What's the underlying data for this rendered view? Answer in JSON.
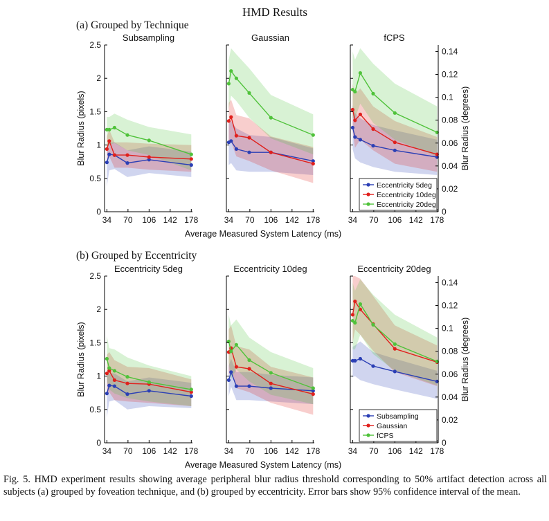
{
  "figure": {
    "title": "HMD Results",
    "caption": "Fig. 5.  HMD experiment results showing average peripheral blur radius threshold corresponding to 50% artifact detection across all subjects (a) grouped by foveation technique, and (b) grouped by eccentricity. Error bars show 95% confidence interval of the mean."
  },
  "rows": [
    {
      "heading": "(a) Grouped by Technique",
      "xlabel": "Average Measured System Latency (ms)",
      "ylabel_left": "Blur Radius (pixels)",
      "ylabel_right": "Blur Radius (degrees)",
      "legend_position": "bottom-right of third panel",
      "legend": [
        {
          "label": "Eccentricity 5deg",
          "color": "#2b3fb5"
        },
        {
          "label": "Eccentricity 10deg",
          "color": "#e0201c"
        },
        {
          "label": "Eccentricity 20deg",
          "color": "#4fc23a"
        }
      ]
    },
    {
      "heading": "(b) Grouped by Eccentricity",
      "xlabel": "Average Measured System Latency (ms)",
      "ylabel_left": "Blur Radius (pixels)",
      "ylabel_right": "Blur Radius (degrees)",
      "legend_position": "bottom-right of third panel",
      "legend": [
        {
          "label": "Subsampling",
          "color": "#2b3fb5"
        },
        {
          "label": "Gaussian",
          "color": "#e0201c"
        },
        {
          "label": "fCPS",
          "color": "#4fc23a"
        }
      ]
    }
  ],
  "axes": {
    "x_ticks": [
      34,
      70,
      106,
      142,
      178
    ],
    "x_range": [
      30,
      180
    ],
    "y_left_ticks": [
      "0",
      "0.5",
      "1",
      "1.5",
      "2",
      "2.5"
    ],
    "y_left_range": [
      0,
      2.5
    ],
    "y_right_ticks": [
      "0",
      "0.02",
      "0.04",
      "0.06",
      "0.08",
      "0.1",
      "0.12",
      "0.14"
    ],
    "y_right_range": [
      0,
      0.1457
    ]
  },
  "chart_data": [
    {
      "type": "line",
      "title": "Subsampling",
      "row": 0,
      "x": [
        34,
        38,
        47,
        69,
        106,
        178
      ],
      "series": [
        {
          "name": "Eccentricity 5deg",
          "color": "#2b3fb5",
          "values": [
            0.74,
            0.86,
            0.85,
            0.73,
            0.78,
            0.7
          ],
          "lower": [
            0.38,
            0.62,
            0.64,
            0.52,
            0.58,
            0.52
          ],
          "upper": [
            1.0,
            1.04,
            1.04,
            0.92,
            0.98,
            0.9
          ]
        },
        {
          "name": "Eccentricity 10deg",
          "color": "#e0201c",
          "values": [
            0.94,
            1.06,
            0.85,
            0.85,
            0.82,
            0.79
          ],
          "lower": [
            0.75,
            0.83,
            0.66,
            0.66,
            0.63,
            0.6
          ],
          "upper": [
            1.13,
            1.23,
            1.04,
            1.04,
            1.02,
            1.0
          ]
        },
        {
          "name": "Eccentricity 20deg",
          "color": "#4fc23a",
          "values": [
            1.23,
            1.23,
            1.26,
            1.15,
            1.07,
            0.86
          ],
          "lower": [
            0.96,
            1.0,
            1.03,
            0.92,
            0.85,
            0.62
          ],
          "upper": [
            1.42,
            1.42,
            1.47,
            1.38,
            1.27,
            1.16
          ]
        }
      ]
    },
    {
      "type": "line",
      "title": "Gaussian",
      "row": 0,
      "x": [
        34,
        38,
        47,
        69,
        106,
        178
      ],
      "series": [
        {
          "name": "Eccentricity 5deg",
          "color": "#2b3fb5",
          "values": [
            1.04,
            1.06,
            0.94,
            0.89,
            0.89,
            0.76
          ],
          "lower": [
            0.7,
            0.73,
            0.62,
            0.6,
            0.6,
            0.55
          ],
          "upper": [
            1.32,
            1.36,
            1.25,
            1.15,
            1.12,
            0.95
          ]
        },
        {
          "name": "Eccentricity 10deg",
          "color": "#e0201c",
          "values": [
            1.36,
            1.42,
            1.14,
            1.11,
            0.89,
            0.72
          ],
          "lower": [
            1.02,
            1.05,
            0.83,
            0.76,
            0.62,
            0.43
          ],
          "upper": [
            1.63,
            1.68,
            1.45,
            1.4,
            1.13,
            0.97
          ]
        },
        {
          "name": "Eccentricity 20deg",
          "color": "#4fc23a",
          "values": [
            1.92,
            2.11,
            2.0,
            1.78,
            1.41,
            1.15
          ],
          "lower": [
            1.53,
            1.74,
            1.66,
            1.41,
            1.1,
            0.86
          ],
          "upper": [
            2.28,
            2.45,
            2.36,
            2.15,
            1.75,
            1.46
          ]
        }
      ]
    },
    {
      "type": "line",
      "title": "fCPS",
      "row": 0,
      "x": [
        34,
        38,
        47,
        69,
        106,
        178
      ],
      "series": [
        {
          "name": "Eccentricity 5deg",
          "color": "#2b3fb5",
          "values": [
            1.26,
            1.12,
            1.08,
            0.99,
            0.92,
            0.82
          ],
          "lower": [
            0.94,
            0.8,
            0.74,
            0.67,
            0.6,
            0.55
          ],
          "upper": [
            1.6,
            1.48,
            1.4,
            1.3,
            1.22,
            1.08
          ]
        },
        {
          "name": "Eccentricity 10deg",
          "color": "#e0201c",
          "values": [
            1.53,
            1.37,
            1.46,
            1.24,
            1.04,
            0.86
          ],
          "lower": [
            1.2,
            0.96,
            1.08,
            0.92,
            0.72,
            0.6
          ],
          "upper": [
            1.92,
            1.76,
            1.85,
            1.58,
            1.36,
            1.12
          ]
        },
        {
          "name": "Eccentricity 20deg",
          "color": "#4fc23a",
          "values": [
            1.83,
            1.8,
            2.08,
            1.77,
            1.48,
            1.19
          ],
          "lower": [
            1.4,
            1.4,
            1.62,
            1.33,
            1.08,
            0.83
          ],
          "upper": [
            2.4,
            2.28,
            2.45,
            2.22,
            1.92,
            1.58
          ]
        }
      ]
    },
    {
      "type": "line",
      "title": "Eccentricity 5deg",
      "row": 1,
      "x": [
        34,
        38,
        47,
        69,
        106,
        178
      ],
      "series": [
        {
          "name": "Subsampling",
          "color": "#2b3fb5",
          "values": [
            0.74,
            0.86,
            0.85,
            0.73,
            0.78,
            0.7
          ],
          "lower": [
            0.38,
            0.62,
            0.64,
            0.5,
            0.55,
            0.52
          ],
          "upper": [
            1.0,
            1.04,
            1.04,
            0.92,
            0.98,
            0.9
          ]
        },
        {
          "name": "Gaussian",
          "color": "#e0201c",
          "values": [
            1.04,
            1.08,
            0.94,
            0.89,
            0.88,
            0.76
          ],
          "lower": [
            0.72,
            0.76,
            0.64,
            0.62,
            0.6,
            0.55
          ],
          "upper": [
            1.32,
            1.36,
            1.24,
            1.14,
            1.12,
            0.95
          ]
        },
        {
          "name": "fCPS",
          "color": "#4fc23a",
          "values": [
            1.26,
            1.12,
            1.08,
            0.99,
            0.91,
            0.8
          ],
          "lower": [
            0.94,
            0.8,
            0.74,
            0.67,
            0.62,
            0.55
          ],
          "upper": [
            1.6,
            1.42,
            1.4,
            1.28,
            1.16,
            1.0
          ]
        }
      ]
    },
    {
      "type": "line",
      "title": "Eccentricity 10deg",
      "row": 1,
      "x": [
        34,
        38,
        47,
        69,
        106,
        178
      ],
      "series": [
        {
          "name": "Subsampling",
          "color": "#2b3fb5",
          "values": [
            0.94,
            1.06,
            0.85,
            0.85,
            0.82,
            0.78
          ],
          "lower": [
            0.7,
            0.84,
            0.64,
            0.64,
            0.62,
            0.58
          ],
          "upper": [
            1.16,
            1.26,
            1.06,
            1.06,
            1.02,
            0.98
          ]
        },
        {
          "name": "Gaussian",
          "color": "#e0201c",
          "values": [
            1.36,
            1.42,
            1.14,
            1.11,
            0.89,
            0.73
          ],
          "lower": [
            1.02,
            1.06,
            0.82,
            0.76,
            0.6,
            0.42
          ],
          "upper": [
            1.7,
            1.76,
            1.45,
            1.4,
            1.14,
            0.98
          ]
        },
        {
          "name": "fCPS",
          "color": "#4fc23a",
          "values": [
            1.52,
            1.37,
            1.47,
            1.24,
            1.05,
            0.82
          ],
          "lower": [
            1.2,
            0.96,
            1.1,
            0.92,
            0.72,
            0.58
          ],
          "upper": [
            1.92,
            1.76,
            1.85,
            1.58,
            1.36,
            1.12
          ]
        }
      ]
    },
    {
      "type": "line",
      "title": "Eccentricity 20deg",
      "row": 1,
      "x": [
        34,
        38,
        47,
        69,
        106,
        178
      ],
      "series": [
        {
          "name": "Subsampling",
          "color": "#2b3fb5",
          "values": [
            1.23,
            1.23,
            1.26,
            1.15,
            1.07,
            0.92
          ],
          "lower": [
            0.98,
            1.0,
            0.94,
            0.88,
            0.8,
            0.66
          ],
          "upper": [
            1.44,
            1.46,
            1.52,
            1.36,
            1.26,
            1.08
          ]
        },
        {
          "name": "Gaussian",
          "color": "#e0201c",
          "values": [
            1.92,
            2.12,
            2.0,
            1.78,
            1.41,
            1.21
          ],
          "lower": [
            1.5,
            1.7,
            1.62,
            1.38,
            1.06,
            0.85
          ],
          "upper": [
            2.5,
            2.5,
            2.46,
            2.2,
            1.76,
            1.46
          ]
        },
        {
          "name": "fCPS",
          "color": "#4fc23a",
          "values": [
            1.83,
            1.8,
            2.08,
            1.77,
            1.48,
            1.22
          ],
          "lower": [
            1.4,
            1.4,
            1.62,
            1.33,
            1.08,
            0.86
          ],
          "upper": [
            2.4,
            2.28,
            2.45,
            2.22,
            1.92,
            1.58
          ]
        }
      ]
    }
  ]
}
